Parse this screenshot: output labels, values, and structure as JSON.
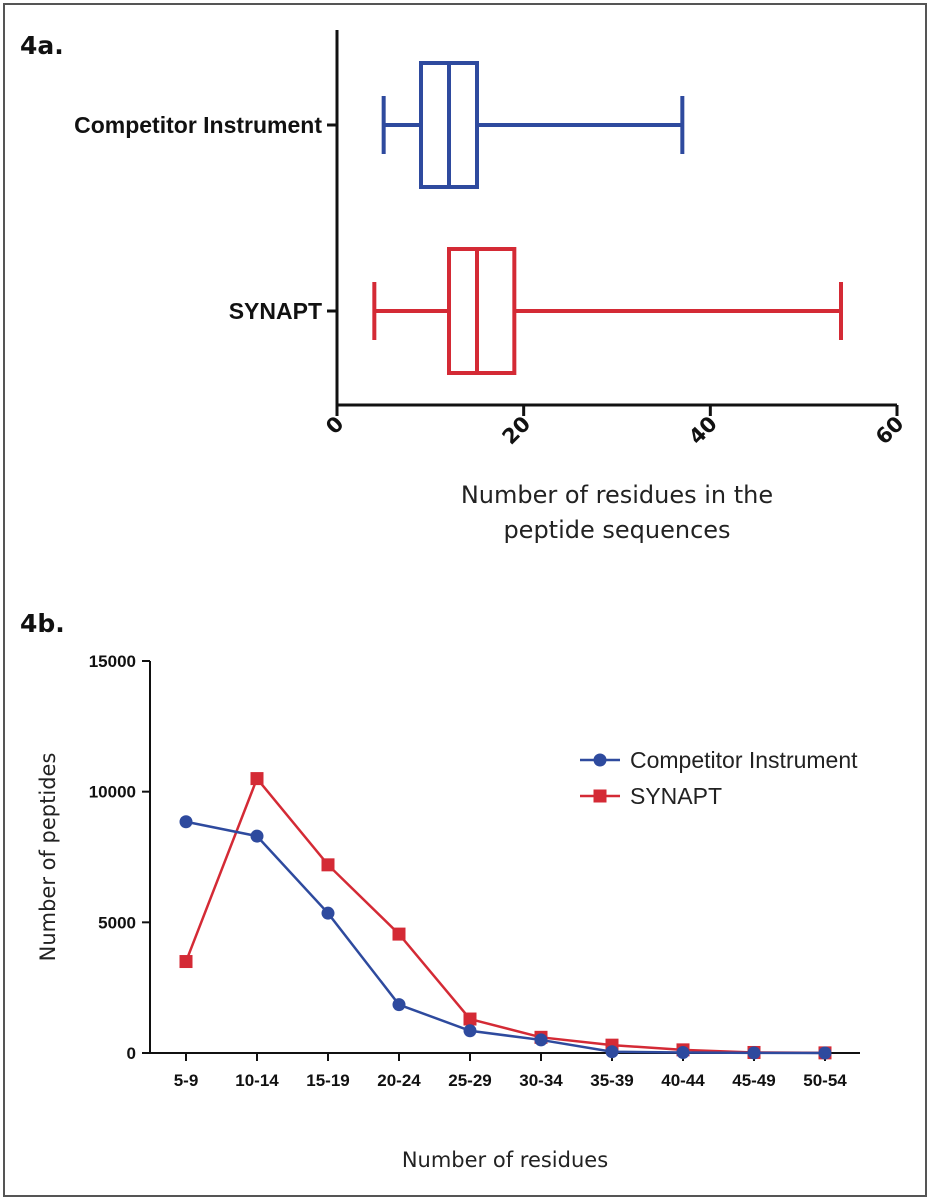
{
  "chart_data": [
    {
      "panel": "4a.",
      "type": "box",
      "orientation": "horizontal",
      "xlabel": [
        "Number of residues in the",
        "peptide sequences"
      ],
      "xlim": [
        0,
        60
      ],
      "xticks": [
        0,
        20,
        40,
        60
      ],
      "series": [
        {
          "name": "Competitor Instrument",
          "color": "#2e4a9e",
          "min": 5,
          "q1": 9,
          "median": 12,
          "q3": 15,
          "max": 37
        },
        {
          "name": "SYNAPT",
          "color": "#d42a35",
          "min": 4,
          "q1": 12,
          "median": 15,
          "q3": 19,
          "max": 54
        }
      ]
    },
    {
      "panel": "4b.",
      "type": "line",
      "xlabel": "Number of residues",
      "ylabel": "Number of peptides",
      "ylim": [
        0,
        15000
      ],
      "yticks": [
        0,
        5000,
        10000,
        15000
      ],
      "categories": [
        "5-9",
        "10-14",
        "15-19",
        "20-24",
        "25-29",
        "30-34",
        "35-39",
        "40-44",
        "45-49",
        "50-54"
      ],
      "series": [
        {
          "name": "Competitor Instrument",
          "color": "#2e4a9e",
          "marker": "circle",
          "values": [
            8850,
            8300,
            5350,
            1850,
            850,
            500,
            50,
            20,
            5,
            0
          ]
        },
        {
          "name": "SYNAPT",
          "color": "#d42a35",
          "marker": "square",
          "values": [
            3500,
            10500,
            7200,
            4550,
            1300,
            600,
            300,
            120,
            20,
            5
          ]
        }
      ]
    }
  ]
}
